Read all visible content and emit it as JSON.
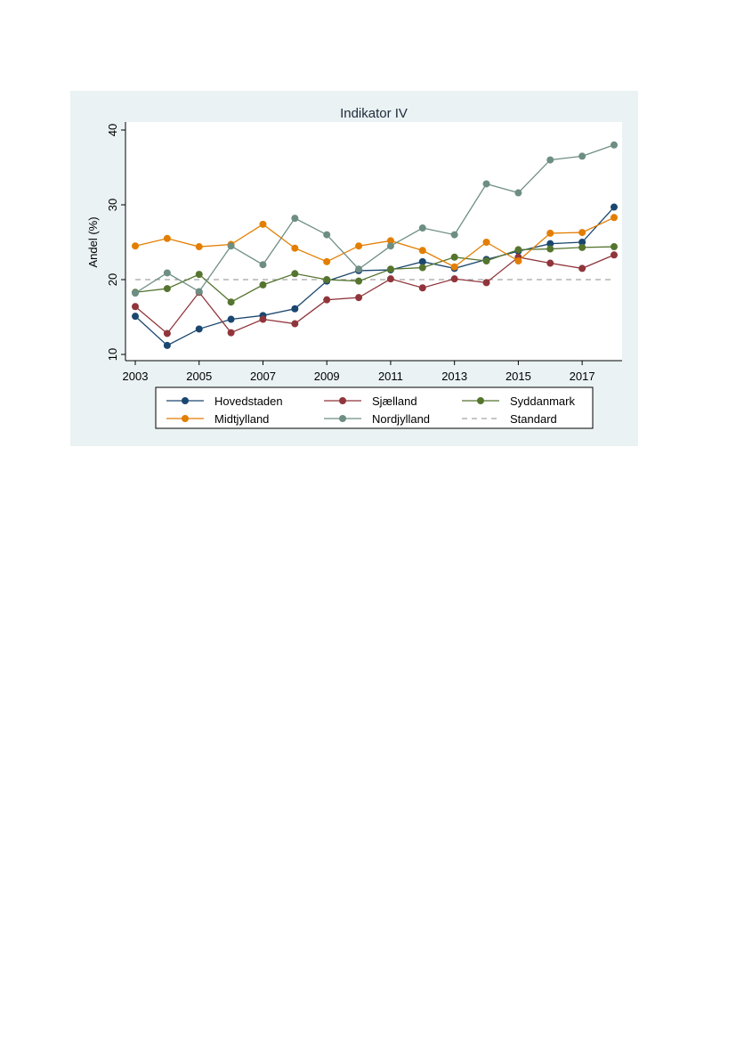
{
  "chart_data": {
    "type": "line",
    "title": "Indikator IV",
    "xlabel": "",
    "ylabel": "Andel (%)",
    "xlim": [
      2003,
      2018
    ],
    "ylim": [
      10,
      40
    ],
    "x_ticks": [
      2003,
      2005,
      2007,
      2009,
      2011,
      2013,
      2015,
      2017
    ],
    "y_ticks": [
      10,
      20,
      30,
      40
    ],
    "grid": false,
    "legend_position": "bottom",
    "x": [
      2003,
      2004,
      2005,
      2006,
      2007,
      2008,
      2009,
      2010,
      2011,
      2012,
      2013,
      2014,
      2015,
      2016,
      2017,
      2018
    ],
    "series": [
      {
        "name": "Hovedstaden",
        "color": "#1a476f",
        "markers": true,
        "values": [
          15.1,
          11.2,
          13.4,
          14.7,
          15.2,
          16.1,
          19.8,
          21.2,
          21.3,
          22.4,
          21.5,
          22.7,
          23.8,
          24.8,
          25.0,
          29.7
        ]
      },
      {
        "name": "Sjælland",
        "color": "#90353b",
        "markers": true,
        "values": [
          16.4,
          12.8,
          18.3,
          12.9,
          14.7,
          14.1,
          17.3,
          17.6,
          20.1,
          18.9,
          20.1,
          19.6,
          23.0,
          22.2,
          21.5,
          23.3
        ]
      },
      {
        "name": "Syddanmark",
        "color": "#55752f",
        "markers": true,
        "values": [
          18.3,
          18.8,
          20.7,
          17.0,
          19.3,
          20.8,
          20.0,
          19.8,
          21.4,
          21.6,
          23.0,
          22.5,
          24.0,
          24.1,
          24.3,
          24.4
        ]
      },
      {
        "name": "Midtjylland",
        "color": "#e37e00",
        "markers": true,
        "values": [
          24.5,
          25.5,
          24.4,
          24.7,
          27.4,
          24.2,
          22.4,
          24.5,
          25.2,
          23.9,
          21.7,
          25.0,
          22.5,
          26.2,
          26.3,
          28.3
        ]
      },
      {
        "name": "Nordjylland",
        "color": "#6e8e84",
        "markers": true,
        "values": [
          18.2,
          20.9,
          18.4,
          24.5,
          22.0,
          28.2,
          26.0,
          21.4,
          24.5,
          26.9,
          26.0,
          32.8,
          31.6,
          36.0,
          36.5,
          38.0
        ]
      },
      {
        "name": "Standard",
        "color": "#8c8c8c",
        "markers": false,
        "dashed": true,
        "values": [
          20,
          20,
          20,
          20,
          20,
          20,
          20,
          20,
          20,
          20,
          20,
          20,
          20,
          20,
          20,
          20
        ]
      }
    ]
  }
}
